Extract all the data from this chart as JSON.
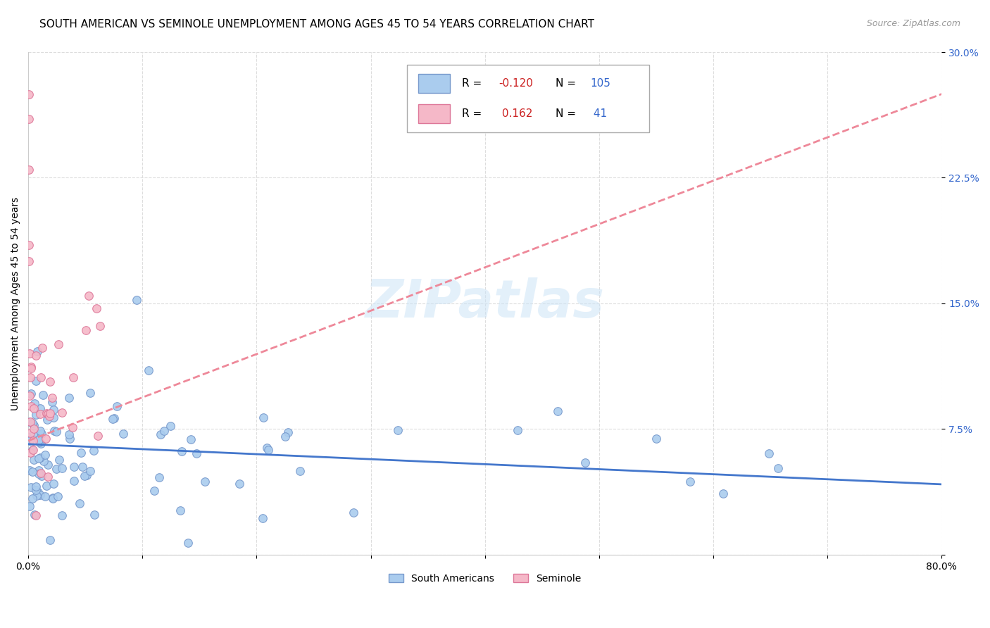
{
  "title": "SOUTH AMERICAN VS SEMINOLE UNEMPLOYMENT AMONG AGES 45 TO 54 YEARS CORRELATION CHART",
  "source": "Source: ZipAtlas.com",
  "ylabel": "Unemployment Among Ages 45 to 54 years",
  "xlim": [
    0.0,
    0.8
  ],
  "ylim": [
    0.0,
    0.3
  ],
  "yticks": [
    0.0,
    0.075,
    0.15,
    0.225,
    0.3
  ],
  "ytick_labels": [
    "",
    "7.5%",
    "15.0%",
    "22.5%",
    "30.0%"
  ],
  "xtick_positions": [
    0.0,
    0.1,
    0.2,
    0.3,
    0.4,
    0.5,
    0.6,
    0.7,
    0.8
  ],
  "xtick_labels": [
    "0.0%",
    "",
    "",
    "",
    "",
    "",
    "",
    "",
    "80.0%"
  ],
  "background_color": "#ffffff",
  "grid_color": "#dddddd",
  "watermark": "ZIPatlas",
  "south_american_color": "#aaccee",
  "south_american_edge_color": "#7799cc",
  "seminole_color": "#f5b8c8",
  "seminole_edge_color": "#dd7799",
  "south_american_line_color": "#4477cc",
  "seminole_line_color": "#ee8899",
  "south_american_R": -0.12,
  "south_american_N": 105,
  "seminole_R": 0.162,
  "seminole_N": 41,
  "title_fontsize": 11,
  "label_fontsize": 10,
  "tick_fontsize": 10,
  "sa_line_x0": 0.0,
  "sa_line_x1": 0.8,
  "sa_line_y0": 0.066,
  "sa_line_y1": 0.042,
  "sem_line_x0": 0.0,
  "sem_line_x1": 0.8,
  "sem_line_y0": 0.068,
  "sem_line_y1": 0.275
}
